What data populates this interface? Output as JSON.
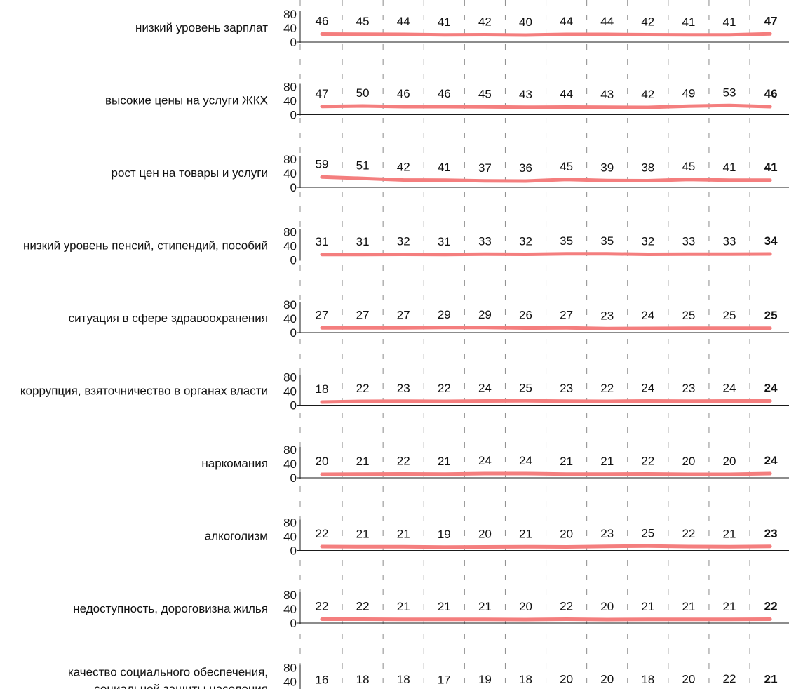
{
  "chart_data": {
    "type": "line",
    "colors": {
      "series_line": "#f47e7e",
      "axis": "#1a1a1a",
      "grid": "#8c8c8c",
      "text": "#111111"
    },
    "grid": "vertical dashed",
    "y_ticks": [
      "80",
      "40",
      "0"
    ],
    "ylim": [
      0,
      100
    ],
    "highlight_last_value": true,
    "panels": [
      {
        "label": [
          "низкий уровень зарплат"
        ],
        "values": [
          46,
          45,
          44,
          41,
          42,
          40,
          44,
          44,
          42,
          41,
          41,
          47
        ]
      },
      {
        "label": [
          "высокие цены на услуги ЖКХ"
        ],
        "values": [
          47,
          50,
          46,
          46,
          45,
          43,
          44,
          43,
          42,
          49,
          53,
          46
        ]
      },
      {
        "label": [
          "рост цен на товары и услуги"
        ],
        "values": [
          59,
          51,
          42,
          41,
          37,
          36,
          45,
          39,
          38,
          45,
          41,
          41
        ]
      },
      {
        "label": [
          "низкий уровень пенсий, стипендий, пособий"
        ],
        "values": [
          31,
          31,
          32,
          31,
          33,
          32,
          35,
          35,
          32,
          33,
          33,
          34
        ]
      },
      {
        "label": [
          "ситуация в сфере здравоохранения"
        ],
        "values": [
          27,
          27,
          27,
          29,
          29,
          26,
          27,
          23,
          24,
          25,
          25,
          25
        ]
      },
      {
        "label": [
          "коррупция, взяточничество в органах власти"
        ],
        "values": [
          18,
          22,
          23,
          22,
          24,
          25,
          23,
          22,
          24,
          23,
          24,
          24
        ]
      },
      {
        "label": [
          "наркомания"
        ],
        "values": [
          20,
          21,
          22,
          21,
          24,
          24,
          21,
          21,
          22,
          20,
          20,
          24
        ]
      },
      {
        "label": [
          "алкоголизм"
        ],
        "values": [
          22,
          21,
          21,
          19,
          20,
          21,
          20,
          23,
          25,
          22,
          21,
          23
        ]
      },
      {
        "label": [
          "недоступность, дороговизна жилья"
        ],
        "values": [
          22,
          22,
          21,
          21,
          21,
          20,
          22,
          20,
          21,
          21,
          21,
          22
        ]
      },
      {
        "label": [
          "качество социального обеспечения,",
          "социальной защиты населения"
        ],
        "values": [
          16,
          18,
          18,
          17,
          19,
          18,
          20,
          20,
          18,
          20,
          22,
          21
        ]
      }
    ]
  }
}
